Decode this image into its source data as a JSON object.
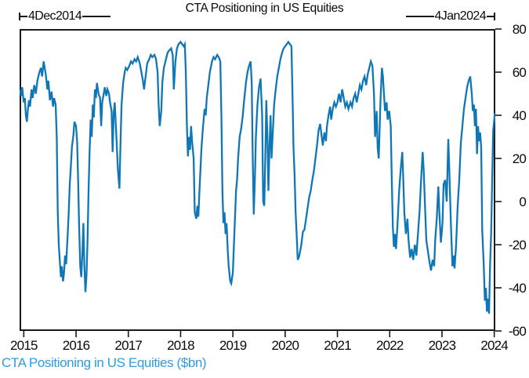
{
  "header": {
    "title": "CTA Positioning in US Equities",
    "start_annotation": "4Dec2014",
    "end_annotation": "4Jan2024"
  },
  "footer": {
    "caption": "CTA Positioning in US Equities ($bn)"
  },
  "colors": {
    "line": "#0f77b6",
    "caption": "#2e9ce1",
    "axis": "#1a1a1a",
    "text": "#0a0a0a"
  },
  "chart_data": {
    "type": "line",
    "title": "CTA Positioning in US Equities",
    "series_label": "CTA Positioning in US Equities ($bn)",
    "xlabel": "",
    "ylabel": "",
    "legend": "none",
    "grid": false,
    "x_range": [
      2014.92,
      2024.02
    ],
    "y_range": [
      -60,
      80
    ],
    "x_ticks": [
      2015,
      2016,
      2017,
      2018,
      2019,
      2020,
      2021,
      2022,
      2023,
      2024
    ],
    "y_ticks": [
      80,
      60,
      40,
      20,
      0,
      -20,
      -40,
      -60
    ],
    "start_date": "4Dec2014",
    "end_date": "4Jan2024",
    "points": [
      [
        2014.93,
        52
      ],
      [
        2014.95,
        49
      ],
      [
        2014.97,
        53
      ],
      [
        2015.0,
        46
      ],
      [
        2015.02,
        48
      ],
      [
        2015.04,
        40
      ],
      [
        2015.06,
        37
      ],
      [
        2015.08,
        43
      ],
      [
        2015.1,
        47
      ],
      [
        2015.12,
        44
      ],
      [
        2015.15,
        52
      ],
      [
        2015.17,
        48
      ],
      [
        2015.2,
        54
      ],
      [
        2015.23,
        50
      ],
      [
        2015.26,
        56
      ],
      [
        2015.3,
        60
      ],
      [
        2015.33,
        62
      ],
      [
        2015.35,
        58
      ],
      [
        2015.38,
        65
      ],
      [
        2015.4,
        62
      ],
      [
        2015.42,
        59
      ],
      [
        2015.45,
        52
      ],
      [
        2015.47,
        56
      ],
      [
        2015.5,
        47
      ],
      [
        2015.53,
        51
      ],
      [
        2015.56,
        44
      ],
      [
        2015.58,
        48
      ],
      [
        2015.61,
        45
      ],
      [
        2015.63,
        30
      ],
      [
        2015.65,
        -5
      ],
      [
        2015.67,
        -20
      ],
      [
        2015.69,
        -28
      ],
      [
        2015.71,
        -35
      ],
      [
        2015.73,
        -30
      ],
      [
        2015.75,
        -37
      ],
      [
        2015.77,
        -33
      ],
      [
        2015.79,
        -25
      ],
      [
        2015.81,
        -29
      ],
      [
        2015.84,
        -15
      ],
      [
        2015.86,
        -5
      ],
      [
        2015.88,
        8
      ],
      [
        2015.9,
        16
      ],
      [
        2015.92,
        25
      ],
      [
        2015.95,
        31
      ],
      [
        2015.97,
        37
      ],
      [
        2016.0,
        35
      ],
      [
        2016.02,
        28
      ],
      [
        2016.04,
        10
      ],
      [
        2016.06,
        -12
      ],
      [
        2016.08,
        -30
      ],
      [
        2016.1,
        -35
      ],
      [
        2016.12,
        -25
      ],
      [
        2016.14,
        -10
      ],
      [
        2016.16,
        -30
      ],
      [
        2016.18,
        -42
      ],
      [
        2016.2,
        -34
      ],
      [
        2016.22,
        -18
      ],
      [
        2016.24,
        5
      ],
      [
        2016.26,
        24
      ],
      [
        2016.28,
        38
      ],
      [
        2016.3,
        30
      ],
      [
        2016.32,
        45
      ],
      [
        2016.34,
        39
      ],
      [
        2016.36,
        52
      ],
      [
        2016.38,
        48
      ],
      [
        2016.4,
        55
      ],
      [
        2016.43,
        50
      ],
      [
        2016.46,
        48
      ],
      [
        2016.48,
        35
      ],
      [
        2016.5,
        46
      ],
      [
        2016.53,
        50
      ],
      [
        2016.55,
        53
      ],
      [
        2016.58,
        49
      ],
      [
        2016.6,
        52
      ],
      [
        2016.63,
        50
      ],
      [
        2016.65,
        46
      ],
      [
        2016.68,
        42
      ],
      [
        2016.7,
        23
      ],
      [
        2016.72,
        41
      ],
      [
        2016.74,
        46
      ],
      [
        2016.77,
        31
      ],
      [
        2016.8,
        15
      ],
      [
        2016.83,
        6
      ],
      [
        2016.85,
        26
      ],
      [
        2016.87,
        45
      ],
      [
        2016.9,
        55
      ],
      [
        2016.93,
        60
      ],
      [
        2016.95,
        62
      ],
      [
        2016.98,
        61
      ],
      [
        2017.02,
        63
      ],
      [
        2017.05,
        65
      ],
      [
        2017.08,
        64
      ],
      [
        2017.12,
        66
      ],
      [
        2017.15,
        65
      ],
      [
        2017.18,
        67
      ],
      [
        2017.22,
        64
      ],
      [
        2017.25,
        60
      ],
      [
        2017.28,
        56
      ],
      [
        2017.3,
        52
      ],
      [
        2017.33,
        58
      ],
      [
        2017.36,
        64
      ],
      [
        2017.4,
        66
      ],
      [
        2017.43,
        68
      ],
      [
        2017.46,
        67
      ],
      [
        2017.5,
        68
      ],
      [
        2017.53,
        66
      ],
      [
        2017.56,
        60
      ],
      [
        2017.58,
        45
      ],
      [
        2017.6,
        35
      ],
      [
        2017.63,
        42
      ],
      [
        2017.65,
        55
      ],
      [
        2017.68,
        62
      ],
      [
        2017.72,
        66
      ],
      [
        2017.75,
        69
      ],
      [
        2017.78,
        70
      ],
      [
        2017.82,
        71
      ],
      [
        2017.85,
        68
      ],
      [
        2017.87,
        52
      ],
      [
        2017.9,
        65
      ],
      [
        2017.93,
        71
      ],
      [
        2017.96,
        73
      ],
      [
        2018.0,
        74
      ],
      [
        2018.03,
        73
      ],
      [
        2018.06,
        72
      ],
      [
        2018.08,
        73
      ],
      [
        2018.1,
        60
      ],
      [
        2018.12,
        35
      ],
      [
        2018.14,
        21
      ],
      [
        2018.16,
        30
      ],
      [
        2018.18,
        24
      ],
      [
        2018.2,
        35
      ],
      [
        2018.22,
        28
      ],
      [
        2018.25,
        20
      ],
      [
        2018.27,
        -5
      ],
      [
        2018.3,
        -8
      ],
      [
        2018.32,
        -2
      ],
      [
        2018.34,
        -7
      ],
      [
        2018.36,
        5
      ],
      [
        2018.38,
        15
      ],
      [
        2018.4,
        25
      ],
      [
        2018.43,
        35
      ],
      [
        2018.46,
        43
      ],
      [
        2018.48,
        40
      ],
      [
        2018.5,
        48
      ],
      [
        2018.53,
        54
      ],
      [
        2018.56,
        60
      ],
      [
        2018.6,
        65
      ],
      [
        2018.63,
        67
      ],
      [
        2018.66,
        66
      ],
      [
        2018.7,
        68
      ],
      [
        2018.73,
        67
      ],
      [
        2018.76,
        65
      ],
      [
        2018.78,
        40
      ],
      [
        2018.8,
        5
      ],
      [
        2018.82,
        -10
      ],
      [
        2018.84,
        -5
      ],
      [
        2018.86,
        -15
      ],
      [
        2018.88,
        -10
      ],
      [
        2018.9,
        -22
      ],
      [
        2018.92,
        -30
      ],
      [
        2018.95,
        -37
      ],
      [
        2018.97,
        -38
      ],
      [
        2019.0,
        -33
      ],
      [
        2019.02,
        -20
      ],
      [
        2019.04,
        -8
      ],
      [
        2019.06,
        5
      ],
      [
        2019.08,
        10
      ],
      [
        2019.1,
        20
      ],
      [
        2019.13,
        30
      ],
      [
        2019.16,
        34
      ],
      [
        2019.19,
        40
      ],
      [
        2019.22,
        48
      ],
      [
        2019.25,
        55
      ],
      [
        2019.28,
        60
      ],
      [
        2019.31,
        63
      ],
      [
        2019.34,
        65
      ],
      [
        2019.36,
        55
      ],
      [
        2019.38,
        20
      ],
      [
        2019.4,
        -6
      ],
      [
        2019.42,
        10
      ],
      [
        2019.44,
        30
      ],
      [
        2019.47,
        45
      ],
      [
        2019.5,
        53
      ],
      [
        2019.53,
        57
      ],
      [
        2019.56,
        40
      ],
      [
        2019.58,
        0
      ],
      [
        2019.6,
        -2
      ],
      [
        2019.62,
        20
      ],
      [
        2019.64,
        47
      ],
      [
        2019.66,
        30
      ],
      [
        2019.68,
        5
      ],
      [
        2019.7,
        25
      ],
      [
        2019.72,
        40
      ],
      [
        2019.74,
        20
      ],
      [
        2019.76,
        30
      ],
      [
        2019.79,
        45
      ],
      [
        2019.82,
        52
      ],
      [
        2019.85,
        58
      ],
      [
        2019.88,
        62
      ],
      [
        2019.91,
        66
      ],
      [
        2019.94,
        69
      ],
      [
        2019.97,
        71
      ],
      [
        2020.0,
        72
      ],
      [
        2020.03,
        73
      ],
      [
        2020.06,
        74
      ],
      [
        2020.09,
        73
      ],
      [
        2020.12,
        72
      ],
      [
        2020.14,
        50
      ],
      [
        2020.16,
        25
      ],
      [
        2020.18,
        12
      ],
      [
        2020.2,
        -5
      ],
      [
        2020.22,
        -15
      ],
      [
        2020.24,
        -27
      ],
      [
        2020.26,
        -26
      ],
      [
        2020.28,
        -24
      ],
      [
        2020.31,
        -20
      ],
      [
        2020.34,
        -14
      ],
      [
        2020.37,
        -13
      ],
      [
        2020.4,
        -8
      ],
      [
        2020.43,
        -3
      ],
      [
        2020.46,
        2
      ],
      [
        2020.49,
        5
      ],
      [
        2020.52,
        10
      ],
      [
        2020.55,
        14
      ],
      [
        2020.58,
        20
      ],
      [
        2020.61,
        26
      ],
      [
        2020.64,
        33
      ],
      [
        2020.67,
        36
      ],
      [
        2020.7,
        30
      ],
      [
        2020.72,
        26
      ],
      [
        2020.75,
        32
      ],
      [
        2020.78,
        28
      ],
      [
        2020.8,
        35
      ],
      [
        2020.83,
        40
      ],
      [
        2020.86,
        44
      ],
      [
        2020.88,
        38
      ],
      [
        2020.91,
        43
      ],
      [
        2020.94,
        46
      ],
      [
        2020.97,
        44
      ],
      [
        2021.0,
        46
      ],
      [
        2021.03,
        50
      ],
      [
        2021.06,
        46
      ],
      [
        2021.09,
        52
      ],
      [
        2021.12,
        48
      ],
      [
        2021.15,
        44
      ],
      [
        2021.18,
        46
      ],
      [
        2021.21,
        43
      ],
      [
        2021.25,
        46
      ],
      [
        2021.28,
        44
      ],
      [
        2021.31,
        48
      ],
      [
        2021.34,
        50
      ],
      [
        2021.37,
        46
      ],
      [
        2021.4,
        50
      ],
      [
        2021.43,
        54
      ],
      [
        2021.46,
        52
      ],
      [
        2021.49,
        56
      ],
      [
        2021.52,
        58
      ],
      [
        2021.55,
        54
      ],
      [
        2021.58,
        59
      ],
      [
        2021.61,
        62
      ],
      [
        2021.64,
        65
      ],
      [
        2021.67,
        63
      ],
      [
        2021.7,
        50
      ],
      [
        2021.72,
        30
      ],
      [
        2021.75,
        42
      ],
      [
        2021.77,
        25
      ],
      [
        2021.79,
        20
      ],
      [
        2021.82,
        45
      ],
      [
        2021.85,
        62
      ],
      [
        2021.87,
        58
      ],
      [
        2021.89,
        50
      ],
      [
        2021.91,
        42
      ],
      [
        2021.94,
        46
      ],
      [
        2021.96,
        38
      ],
      [
        2021.99,
        42
      ],
      [
        2022.02,
        35
      ],
      [
        2022.04,
        10
      ],
      [
        2022.06,
        -12
      ],
      [
        2022.08,
        -21
      ],
      [
        2022.1,
        -15
      ],
      [
        2022.12,
        -22
      ],
      [
        2022.15,
        -10
      ],
      [
        2022.18,
        5
      ],
      [
        2022.21,
        15
      ],
      [
        2022.24,
        23
      ],
      [
        2022.26,
        10
      ],
      [
        2022.28,
        -5
      ],
      [
        2022.31,
        -15
      ],
      [
        2022.34,
        -8
      ],
      [
        2022.36,
        -18
      ],
      [
        2022.39,
        -26
      ],
      [
        2022.42,
        -22
      ],
      [
        2022.45,
        -27
      ],
      [
        2022.48,
        -20
      ],
      [
        2022.51,
        -25
      ],
      [
        2022.54,
        -15
      ],
      [
        2022.57,
        -5
      ],
      [
        2022.6,
        10
      ],
      [
        2022.63,
        23
      ],
      [
        2022.65,
        15
      ],
      [
        2022.68,
        -5
      ],
      [
        2022.7,
        -18
      ],
      [
        2022.73,
        -23
      ],
      [
        2022.76,
        -28
      ],
      [
        2022.79,
        -32
      ],
      [
        2022.82,
        -27
      ],
      [
        2022.85,
        -30
      ],
      [
        2022.87,
        -18
      ],
      [
        2022.9,
        -8
      ],
      [
        2022.93,
        7
      ],
      [
        2022.95,
        -5
      ],
      [
        2022.98,
        -19
      ],
      [
        2023.01,
        -10
      ],
      [
        2023.03,
        8
      ],
      [
        2023.06,
        10
      ],
      [
        2023.09,
        0
      ],
      [
        2023.12,
        29
      ],
      [
        2023.14,
        15
      ],
      [
        2023.17,
        -10
      ],
      [
        2023.2,
        -30
      ],
      [
        2023.22,
        -25
      ],
      [
        2023.24,
        -31
      ],
      [
        2023.27,
        -20
      ],
      [
        2023.3,
        -2
      ],
      [
        2023.33,
        10
      ],
      [
        2023.36,
        27
      ],
      [
        2023.39,
        35
      ],
      [
        2023.42,
        43
      ],
      [
        2023.45,
        48
      ],
      [
        2023.48,
        53
      ],
      [
        2023.51,
        56
      ],
      [
        2023.54,
        58
      ],
      [
        2023.57,
        50
      ],
      [
        2023.59,
        42
      ],
      [
        2023.61,
        45
      ],
      [
        2023.63,
        35
      ],
      [
        2023.65,
        43
      ],
      [
        2023.67,
        22
      ],
      [
        2023.69,
        35
      ],
      [
        2023.71,
        28
      ],
      [
        2023.73,
        32
      ],
      [
        2023.75,
        25
      ],
      [
        2023.77,
        -13
      ],
      [
        2023.8,
        -30
      ],
      [
        2023.82,
        -46
      ],
      [
        2023.84,
        -40
      ],
      [
        2023.86,
        -51
      ],
      [
        2023.88,
        -45
      ],
      [
        2023.9,
        -52
      ],
      [
        2023.92,
        -30
      ],
      [
        2023.94,
        -15
      ],
      [
        2023.96,
        10
      ],
      [
        2023.98,
        33
      ],
      [
        2024.0,
        38
      ],
      [
        2024.01,
        41
      ]
    ]
  }
}
